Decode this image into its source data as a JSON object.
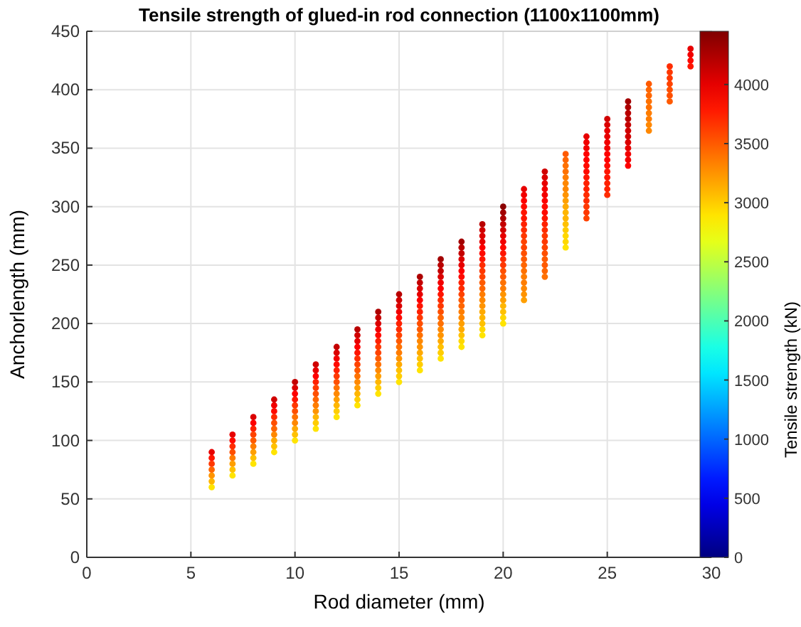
{
  "chart_data": {
    "type": "scatter",
    "title": "Tensile strength of glued-in rod connection (1100x1100mm)",
    "xlabel": "Rod diameter (mm)",
    "ylabel": "Anchorlength (mm)",
    "clabel": "Tensile strength (kN)",
    "xlim": [
      0,
      30
    ],
    "xticks": [
      0,
      5,
      10,
      15,
      20,
      25,
      30
    ],
    "ylim": [
      0,
      450
    ],
    "yticks": [
      0,
      50,
      100,
      150,
      200,
      250,
      300,
      350,
      400,
      450
    ],
    "clim": [
      0,
      4450
    ],
    "cticks": [
      0,
      500,
      1000,
      1500,
      2000,
      2500,
      3000,
      3500,
      4000
    ],
    "grid": true,
    "x": [
      6,
      6,
      6,
      6,
      6,
      6,
      6,
      7,
      7,
      7,
      7,
      7,
      7,
      7,
      7,
      8,
      8,
      8,
      8,
      8,
      8,
      8,
      8,
      8,
      9,
      9,
      9,
      9,
      9,
      9,
      9,
      9,
      9,
      9,
      10,
      10,
      10,
      10,
      10,
      10,
      10,
      10,
      10,
      10,
      10,
      11,
      11,
      11,
      11,
      11,
      11,
      11,
      11,
      11,
      11,
      11,
      11,
      12,
      12,
      12,
      12,
      12,
      12,
      12,
      12,
      12,
      12,
      12,
      12,
      12,
      13,
      13,
      13,
      13,
      13,
      13,
      13,
      13,
      13,
      13,
      13,
      13,
      13,
      13,
      14,
      14,
      14,
      14,
      14,
      14,
      14,
      14,
      14,
      14,
      14,
      14,
      14,
      14,
      14,
      15,
      15,
      15,
      15,
      15,
      15,
      15,
      15,
      15,
      15,
      15,
      15,
      15,
      15,
      15,
      15,
      16,
      16,
      16,
      16,
      16,
      16,
      16,
      16,
      16,
      16,
      16,
      16,
      16,
      16,
      16,
      16,
      16,
      17,
      17,
      17,
      17,
      17,
      17,
      17,
      17,
      17,
      17,
      17,
      17,
      17,
      17,
      17,
      17,
      17,
      17,
      18,
      18,
      18,
      18,
      18,
      18,
      18,
      18,
      18,
      18,
      18,
      18,
      18,
      18,
      18,
      18,
      18,
      18,
      18,
      19,
      19,
      19,
      19,
      19,
      19,
      19,
      19,
      19,
      19,
      19,
      19,
      19,
      19,
      19,
      19,
      19,
      19,
      19,
      19,
      20,
      20,
      20,
      20,
      20,
      20,
      20,
      20,
      20,
      20,
      20,
      20,
      20,
      20,
      20,
      20,
      20,
      20,
      20,
      20,
      20,
      21,
      21,
      21,
      21,
      21,
      21,
      21,
      21,
      21,
      21,
      21,
      21,
      21,
      21,
      21,
      21,
      21,
      21,
      21,
      21,
      22,
      22,
      22,
      22,
      22,
      22,
      22,
      22,
      22,
      22,
      22,
      22,
      22,
      22,
      22,
      22,
      22,
      22,
      22,
      23,
      23,
      23,
      23,
      23,
      23,
      23,
      23,
      23,
      23,
      23,
      23,
      23,
      23,
      23,
      23,
      23,
      24,
      24,
      24,
      24,
      24,
      24,
      24,
      24,
      24,
      24,
      24,
      24,
      24,
      24,
      24,
      25,
      25,
      25,
      25,
      25,
      25,
      25,
      25,
      25,
      25,
      25,
      25,
      25,
      25,
      26,
      26,
      26,
      26,
      26,
      26,
      26,
      26,
      26,
      26,
      26,
      26,
      27,
      27,
      27,
      27,
      27,
      27,
      27,
      27,
      27,
      28,
      28,
      28,
      28,
      28,
      28,
      28,
      29,
      29,
      29,
      29
    ],
    "values": [
      60,
      65,
      70,
      75,
      80,
      85,
      90,
      70,
      75,
      80,
      85,
      90,
      95,
      100,
      105,
      80,
      85,
      90,
      95,
      100,
      105,
      110,
      115,
      120,
      90,
      95,
      100,
      105,
      110,
      115,
      120,
      125,
      130,
      135,
      100,
      105,
      110,
      115,
      120,
      125,
      130,
      135,
      140,
      145,
      150,
      110,
      115,
      120,
      125,
      130,
      135,
      140,
      145,
      150,
      155,
      160,
      165,
      120,
      125,
      130,
      135,
      140,
      145,
      150,
      155,
      160,
      165,
      170,
      175,
      180,
      130,
      135,
      140,
      145,
      150,
      155,
      160,
      165,
      170,
      175,
      180,
      185,
      190,
      195,
      140,
      145,
      150,
      155,
      160,
      165,
      170,
      175,
      180,
      185,
      190,
      195,
      200,
      205,
      210,
      150,
      155,
      160,
      165,
      170,
      175,
      180,
      185,
      190,
      195,
      200,
      205,
      210,
      215,
      220,
      225,
      160,
      165,
      170,
      175,
      180,
      185,
      190,
      195,
      200,
      205,
      210,
      215,
      220,
      225,
      230,
      235,
      240,
      170,
      175,
      180,
      185,
      190,
      195,
      200,
      205,
      210,
      215,
      220,
      225,
      230,
      235,
      240,
      245,
      250,
      255,
      180,
      185,
      190,
      195,
      200,
      205,
      210,
      215,
      220,
      225,
      230,
      235,
      240,
      245,
      250,
      255,
      260,
      265,
      270,
      190,
      195,
      200,
      205,
      210,
      215,
      220,
      225,
      230,
      235,
      240,
      245,
      250,
      255,
      260,
      265,
      270,
      275,
      280,
      285,
      200,
      205,
      210,
      215,
      220,
      225,
      230,
      235,
      240,
      245,
      250,
      255,
      260,
      265,
      270,
      275,
      280,
      285,
      290,
      295,
      300,
      220,
      225,
      230,
      235,
      240,
      245,
      250,
      255,
      260,
      265,
      270,
      275,
      280,
      285,
      290,
      295,
      300,
      305,
      310,
      315,
      240,
      245,
      250,
      255,
      260,
      265,
      270,
      275,
      280,
      285,
      290,
      295,
      300,
      305,
      310,
      315,
      320,
      325,
      330,
      265,
      270,
      275,
      280,
      285,
      290,
      295,
      300,
      305,
      310,
      315,
      320,
      325,
      330,
      335,
      340,
      345,
      290,
      295,
      300,
      305,
      310,
      315,
      320,
      325,
      330,
      335,
      340,
      345,
      350,
      355,
      360,
      310,
      315,
      320,
      325,
      330,
      335,
      340,
      345,
      350,
      355,
      360,
      365,
      370,
      375,
      335,
      340,
      345,
      350,
      355,
      360,
      365,
      370,
      375,
      380,
      385,
      390,
      365,
      370,
      375,
      380,
      385,
      390,
      395,
      400,
      405,
      390,
      395,
      400,
      405,
      410,
      415,
      420,
      420,
      425,
      430,
      435
    ],
    "cvalues": [
      2900,
      3100,
      3250,
      3450,
      3650,
      3800,
      4000,
      2900,
      3050,
      3200,
      3350,
      3550,
      3700,
      3850,
      4000,
      2900,
      3050,
      3200,
      3350,
      3500,
      3600,
      3750,
      3900,
      4050,
      2900,
      3050,
      3150,
      3300,
      3450,
      3550,
      3700,
      3850,
      3950,
      4100,
      2900,
      3050,
      3150,
      3300,
      3400,
      3550,
      3650,
      3800,
      3900,
      4050,
      4150,
      2900,
      3000,
      3100,
      3250,
      3350,
      3450,
      3550,
      3650,
      3750,
      3900,
      4000,
      4100,
      2900,
      3000,
      3100,
      3200,
      3300,
      3400,
      3550,
      3650,
      3750,
      3850,
      3950,
      4050,
      4150,
      2900,
      3000,
      3100,
      3200,
      3300,
      3400,
      3500,
      3600,
      3700,
      3800,
      3900,
      4000,
      4100,
      4200,
      2900,
      3000,
      3100,
      3200,
      3300,
      3400,
      3500,
      3600,
      3650,
      3750,
      3850,
      3950,
      4050,
      4150,
      4250,
      2900,
      3000,
      3050,
      3150,
      3250,
      3350,
      3400,
      3500,
      3600,
      3700,
      3750,
      3850,
      3950,
      4050,
      4100,
      4200,
      2900,
      3000,
      3050,
      3150,
      3250,
      3300,
      3400,
      3500,
      3550,
      3650,
      3750,
      3800,
      3900,
      4000,
      4050,
      4150,
      4250,
      2900,
      3000,
      3050,
      3150,
      3250,
      3300,
      3400,
      3450,
      3550,
      3650,
      3700,
      3800,
      3900,
      3950,
      4050,
      4150,
      4200,
      4300,
      2900,
      2950,
      3050,
      3150,
      3200,
      3300,
      3350,
      3450,
      3500,
      3600,
      3700,
      3750,
      3850,
      3900,
      4000,
      4050,
      4150,
      4200,
      4300,
      2900,
      2950,
      3050,
      3100,
      3150,
      3250,
      3300,
      3350,
      3450,
      3500,
      3600,
      3650,
      3700,
      3800,
      3850,
      3900,
      4000,
      4050,
      4100,
      4200,
      2900,
      2950,
      3050,
      3100,
      3200,
      3250,
      3350,
      3400,
      3500,
      3550,
      3650,
      3700,
      3800,
      3850,
      3950,
      4000,
      4100,
      4150,
      4250,
      4300,
      4400,
      3200,
      3250,
      3300,
      3350,
      3350,
      3400,
      3450,
      3500,
      3550,
      3600,
      3600,
      3650,
      3700,
      3750,
      3800,
      3800,
      3850,
      3900,
      3950,
      4000,
      3400,
      3450,
      3500,
      3500,
      3550,
      3600,
      3650,
      3650,
      3700,
      3750,
      3800,
      3850,
      3850,
      3900,
      3950,
      3950,
      4000,
      4050,
      4100,
      2900,
      2950,
      2950,
      3000,
      3050,
      3100,
      3100,
      3150,
      3200,
      3250,
      3300,
      3300,
      3350,
      3400,
      3400,
      3450,
      3500,
      3600,
      3650,
      3650,
      3700,
      3700,
      3750,
      3750,
      3800,
      3850,
      3850,
      3900,
      3900,
      3950,
      3950,
      4000,
      3700,
      3750,
      3750,
      3800,
      3800,
      3850,
      3900,
      3900,
      3950,
      3950,
      4000,
      4000,
      4050,
      4100,
      3900,
      3950,
      3950,
      4000,
      4050,
      4100,
      4100,
      4150,
      4200,
      4200,
      4250,
      4300,
      3300,
      3300,
      3350,
      3350,
      3400,
      3400,
      3450,
      3450,
      3500,
      3500,
      3550,
      3550,
      3600,
      3650,
      3650,
      3700,
      3800,
      3850,
      3950,
      4000
    ]
  }
}
